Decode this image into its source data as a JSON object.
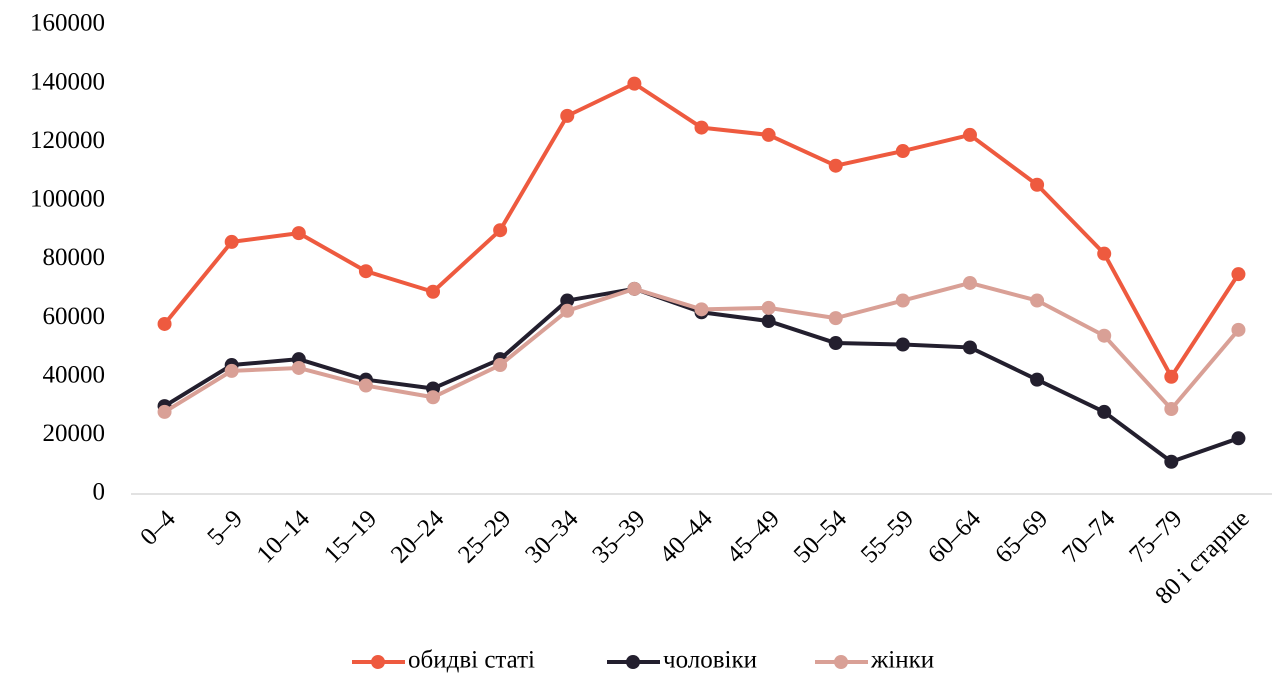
{
  "chart_data": {
    "type": "line",
    "categories": [
      "0–4",
      "5–9",
      "10–14",
      "15–19",
      "20–24",
      "25–29",
      "30–34",
      "35–39",
      "40–44",
      "45–49",
      "50–54",
      "55–59",
      "60–64",
      "65–69",
      "70–74",
      "75–79",
      "80 і старше"
    ],
    "series": [
      {
        "name": "обидві статі",
        "color": "#ee5a3f",
        "values": [
          58000,
          86000,
          89000,
          76000,
          69000,
          90000,
          129000,
          140000,
          125000,
          122500,
          112000,
          117000,
          122500,
          105500,
          82000,
          40000,
          75000
        ]
      },
      {
        "name": "чоловіки",
        "color": "#231f2e",
        "values": [
          30000,
          44000,
          46000,
          39000,
          36000,
          46000,
          66000,
          70000,
          62000,
          59000,
          51500,
          51000,
          50000,
          39000,
          28000,
          11000,
          19000
        ]
      },
      {
        "name": "жінки",
        "color": "#d9a096",
        "values": [
          28000,
          42000,
          43000,
          37000,
          33000,
          44000,
          62500,
          70000,
          63000,
          63500,
          60000,
          66000,
          72000,
          66000,
          54000,
          29000,
          56000
        ]
      }
    ],
    "ylim": [
      0,
      160000
    ],
    "yticks": [
      0,
      20000,
      40000,
      60000,
      80000,
      100000,
      120000,
      140000,
      160000
    ],
    "grid": false,
    "legend": "bottom"
  }
}
